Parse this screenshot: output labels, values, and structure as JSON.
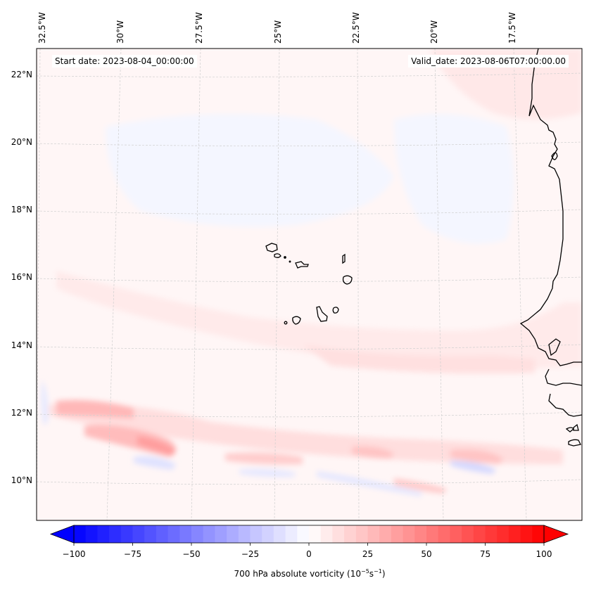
{
  "map": {
    "type": "contour map",
    "variable": "700 hPa absolute vorticity",
    "region": "Eastern tropical Atlantic / Cape Verde / West Africa coast",
    "start_date_label": "Start date: 2023-08-04_00:00:00",
    "valid_date_label": "Valid_date: 2023-08-06T07:00:00.00",
    "lon_ticks": [
      "32.5°W",
      "30°W",
      "27.5°W",
      "25°W",
      "22.5°W",
      "20°W",
      "17.5°W"
    ],
    "lon_values": [
      -32.5,
      -30,
      -27.5,
      -25,
      -22.5,
      -20,
      -17.5
    ],
    "lat_ticks": [
      "22°N",
      "20°N",
      "18°N",
      "16°N",
      "14°N",
      "12°N",
      "10°N"
    ],
    "lat_values": [
      22,
      20,
      18,
      16,
      14,
      12,
      10
    ],
    "extent": {
      "lon_min": -33.2,
      "lon_max": -15.6,
      "lat_min": 8.9,
      "lat_max": 22.8
    },
    "colors": {
      "negative": "#0000ff",
      "zero": "#ffffff",
      "positive": "#ff0000",
      "coastline": "#000000",
      "gridline": "#c8c8c8"
    },
    "features": [
      {
        "name": "vorticity-maximum-band",
        "lon": -28.5,
        "lat": 11.2,
        "value": 35
      },
      {
        "name": "vorticity-maximum-north",
        "lon": -30.5,
        "lat": 12.1,
        "value": 25
      },
      {
        "name": "vorticity-minimum-east",
        "lon": -18.5,
        "lat": 10.3,
        "value": -15
      },
      {
        "name": "vorticity-positive-east",
        "lon": -19,
        "lat": 10.8,
        "value": 20
      },
      {
        "name": "vorticity-positive-central",
        "lon": -22,
        "lat": 10.9,
        "value": 20
      }
    ]
  },
  "colorbar": {
    "label_main": "700 hPa absolute vorticity (10",
    "label_exp1": "−5",
    "label_mid": "s",
    "label_exp2": "−1",
    "label_end": ")",
    "ticks": [
      "−100",
      "−75",
      "−50",
      "−25",
      "0",
      "25",
      "50",
      "75",
      "100"
    ],
    "tick_values": [
      -100,
      -75,
      -50,
      -25,
      0,
      25,
      50,
      75,
      100
    ],
    "min": -100,
    "max": 100,
    "levels": 40,
    "extend": "both"
  }
}
